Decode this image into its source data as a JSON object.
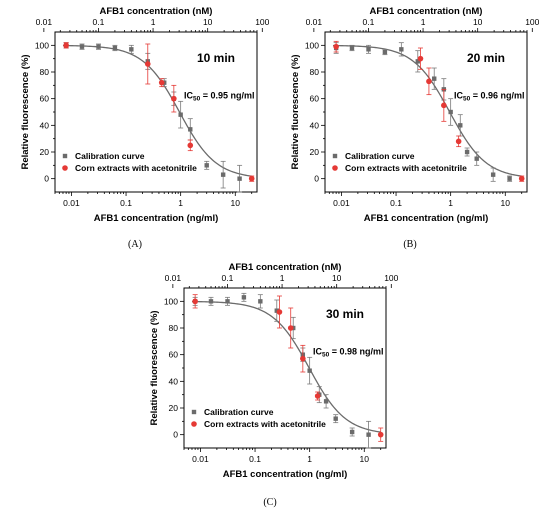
{
  "chart_data": [
    {
      "type": "scatter",
      "panel_label": "(A)",
      "annotation": "10 min",
      "ic50": {
        "prefix": "IC",
        "sub": "50",
        "text": " = 0.95 ng/ml"
      },
      "xlabel": "AFB1 concentration (ng/ml)",
      "xlabel_top": "AFB1 concentration (nM)",
      "ylabel": "Relative fluorescence (%)",
      "xscale": "log",
      "xlim": [
        0.005,
        25
      ],
      "ylim": [
        -10,
        110
      ],
      "xticks": [
        0.01,
        0.1,
        1,
        10
      ],
      "xticklabels": [
        "0.01",
        "0.1",
        "1",
        "10"
      ],
      "xticks_top": [
        0.01,
        0.1,
        1,
        10,
        100
      ],
      "yticks": [
        0,
        20,
        40,
        60,
        80,
        100
      ],
      "legend": "bottom-left",
      "fit": {
        "top": 100,
        "bottom": 0,
        "ic50": 0.95,
        "hill": 1.3
      },
      "series": [
        {
          "name": "Calibration curve",
          "color": "#6b6b6b",
          "marker": "square",
          "x": [
            0.008,
            0.0156,
            0.0313,
            0.0625,
            0.125,
            0.25,
            0.5,
            0.75,
            1.0,
            1.5,
            3.0,
            6.0,
            12.0
          ],
          "y": [
            100,
            99,
            99,
            98,
            97,
            88,
            72,
            60,
            48,
            37,
            10,
            3,
            0
          ],
          "err": [
            2,
            2,
            2,
            2,
            3,
            6,
            3,
            5,
            10,
            8,
            3,
            10,
            10
          ]
        },
        {
          "name": "Corn extracts with acetonitrile",
          "color": "#e53935",
          "marker": "circle",
          "x": [
            0.008,
            0.25,
            0.45,
            0.75,
            1.5,
            20
          ],
          "y": [
            100,
            86,
            72,
            60,
            25,
            0
          ],
          "err": [
            2,
            15,
            3,
            10,
            4,
            2
          ]
        }
      ]
    },
    {
      "type": "scatter",
      "panel_label": "(B)",
      "annotation": "20 min",
      "ic50": {
        "prefix": "IC",
        "sub": "50",
        "text": " = 0.96 ng/ml"
      },
      "xlabel": "AFB1 concentration (ng/ml)",
      "xlabel_top": "AFB1 concentration (nM)",
      "ylabel": "Relative fluorescence (%)",
      "xscale": "log",
      "xlim": [
        0.005,
        25
      ],
      "ylim": [
        -10,
        110
      ],
      "xticks": [
        0.01,
        0.1,
        1,
        10
      ],
      "xticklabels": [
        "0.01",
        "0.1",
        "1",
        "10"
      ],
      "xticks_top": [
        0.01,
        0.1,
        1,
        10,
        100
      ],
      "yticks": [
        0,
        20,
        40,
        60,
        80,
        100
      ],
      "legend": "bottom-left",
      "fit": {
        "top": 100,
        "bottom": 0,
        "ic50": 0.96,
        "hill": 1.3
      },
      "series": [
        {
          "name": "Calibration curve",
          "color": "#6b6b6b",
          "marker": "square",
          "x": [
            0.008,
            0.0156,
            0.0313,
            0.0625,
            0.125,
            0.25,
            0.5,
            0.75,
            1.0,
            1.5,
            2.0,
            3.0,
            6.0,
            12.0
          ],
          "y": [
            98,
            98,
            97,
            95,
            97,
            88,
            75,
            67,
            50,
            40,
            20,
            15,
            3,
            0
          ],
          "err": [
            4,
            2,
            3,
            2,
            5,
            8,
            8,
            8,
            10,
            8,
            3,
            5,
            5,
            2
          ]
        },
        {
          "name": "Corn extracts with acetonitrile",
          "color": "#e53935",
          "marker": "circle",
          "x": [
            0.008,
            0.28,
            0.4,
            0.75,
            1.4,
            20
          ],
          "y": [
            99,
            90,
            73,
            55,
            28,
            0
          ],
          "err": [
            4,
            8,
            10,
            12,
            4,
            2
          ]
        }
      ]
    },
    {
      "type": "scatter",
      "panel_label": "(C)",
      "annotation": "30 min",
      "ic50": {
        "prefix": "IC",
        "sub": "50",
        "text": " = 0.98 ng/ml"
      },
      "xlabel": "AFB1 concentration (ng/ml)",
      "xlabel_top": "AFB1 concentration (nM)",
      "ylabel": "Relative fluorescence (%)",
      "xscale": "log",
      "xlim": [
        0.005,
        25
      ],
      "ylim": [
        -10,
        110
      ],
      "xticks": [
        0.01,
        0.1,
        1,
        10
      ],
      "xticklabels": [
        "0.01",
        "0.1",
        "1",
        "10"
      ],
      "xticks_top": [
        0.01,
        0.1,
        1,
        10,
        100
      ],
      "yticks": [
        0,
        20,
        40,
        60,
        80,
        100
      ],
      "legend": "bottom-left",
      "fit": {
        "top": 100,
        "bottom": 0,
        "ic50": 0.98,
        "hill": 1.3
      },
      "series": [
        {
          "name": "Calibration curve",
          "color": "#6b6b6b",
          "marker": "square",
          "x": [
            0.008,
            0.0156,
            0.0313,
            0.0625,
            0.125,
            0.25,
            0.5,
            0.75,
            1.0,
            1.5,
            2.0,
            3.0,
            6.0,
            12.0
          ],
          "y": [
            100,
            100,
            100,
            103,
            100,
            93,
            80,
            60,
            48,
            30,
            25,
            12,
            2,
            0
          ],
          "err": [
            3,
            3,
            3,
            3,
            5,
            8,
            8,
            5,
            10,
            6,
            5,
            3,
            3,
            10
          ]
        },
        {
          "name": "Corn extracts with acetonitrile",
          "color": "#e53935",
          "marker": "circle",
          "x": [
            0.008,
            0.28,
            0.45,
            0.75,
            1.4,
            20
          ],
          "y": [
            100,
            92,
            80,
            57,
            29,
            0
          ],
          "err": [
            5,
            12,
            15,
            10,
            3,
            5
          ]
        }
      ]
    }
  ]
}
